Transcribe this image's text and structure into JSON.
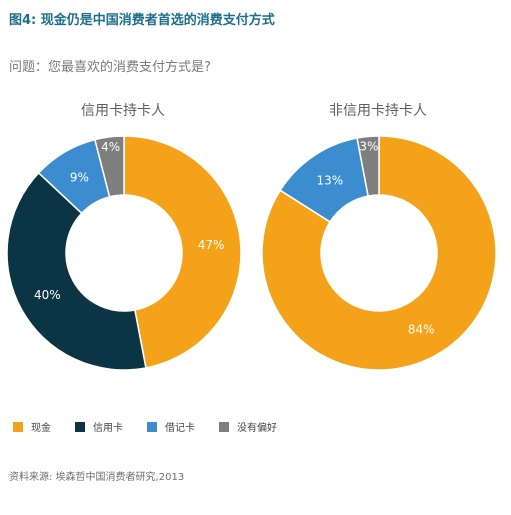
{
  "title": "图4: 现金仍是中国消费者首选的消费支付方式",
  "question": "问题：您最喜欢的消费支付方式是?",
  "source": "资料来源: 埃森哲中国消费者研究,2013",
  "chart_data": [
    {
      "type": "pie",
      "title": "信用卡持卡人",
      "categories": [
        "现金",
        "信用卡",
        "借记卡",
        "没有偏好"
      ],
      "values": [
        47,
        40,
        9,
        4
      ],
      "labels": [
        "47%",
        "40%",
        "9%",
        "4%"
      ]
    },
    {
      "type": "pie",
      "title": "非信用卡持卡人",
      "categories": [
        "现金",
        "信用卡",
        "借记卡",
        "没有偏好"
      ],
      "values": [
        84,
        0,
        13,
        3
      ],
      "labels": [
        "84%",
        "",
        "13%",
        "3%"
      ]
    }
  ],
  "legend": [
    {
      "label": "现金",
      "color": "#F5A21B"
    },
    {
      "label": "信用卡",
      "color": "#0B3545"
    },
    {
      "label": "借记卡",
      "color": "#3B8DD0"
    },
    {
      "label": "没有偏好",
      "color": "#7E7E7E"
    }
  ]
}
